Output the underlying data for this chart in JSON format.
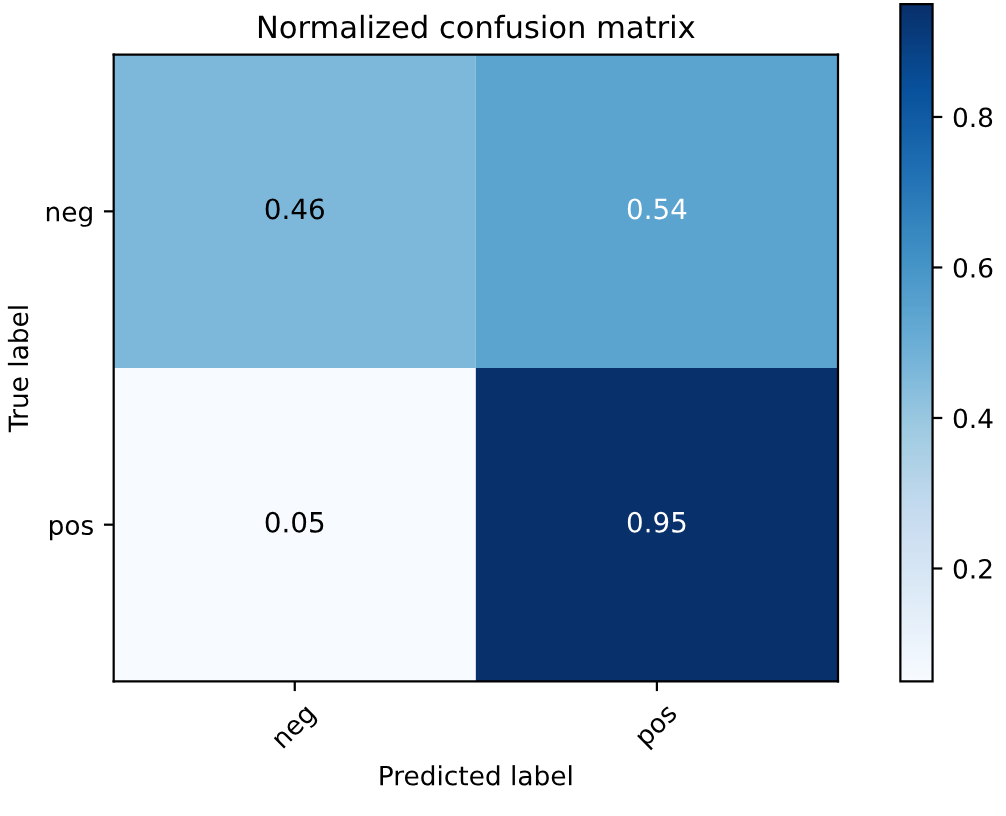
{
  "chart_data": {
    "type": "heatmap",
    "title": "Normalized confusion matrix",
    "xlabel": "Predicted label",
    "ylabel": "True label",
    "categories": [
      "neg",
      "pos"
    ],
    "y_categories": [
      "neg",
      "pos"
    ],
    "cells": [
      [
        0.46,
        0.54
      ],
      [
        0.05,
        0.95
      ]
    ],
    "data_labels": true,
    "clim": [
      0.05,
      0.95
    ],
    "cticks": [
      0.2,
      0.4,
      0.6,
      0.8
    ],
    "grid": false
  }
}
